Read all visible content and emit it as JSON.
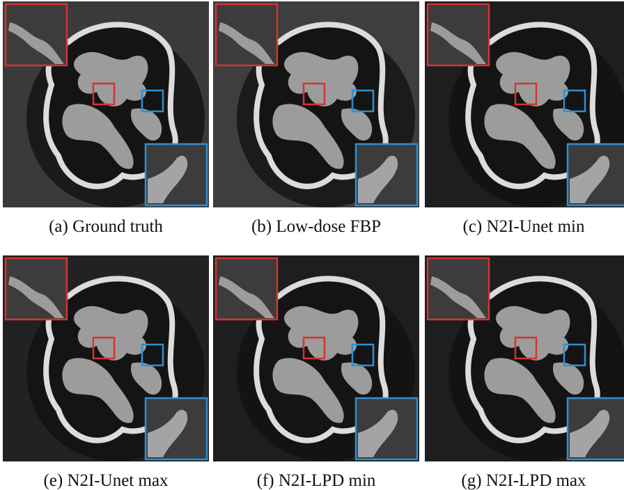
{
  "panels": [
    {
      "caption": "(a) Ground truth"
    },
    {
      "caption": "(b) Low-dose FBP"
    },
    {
      "caption": "(c) N2I-Unet min"
    },
    {
      "caption": "(e) N2I-Unet max"
    },
    {
      "caption": "(f) N2I-LPD min"
    },
    {
      "caption": "(g) N2I-LPD max"
    }
  ]
}
